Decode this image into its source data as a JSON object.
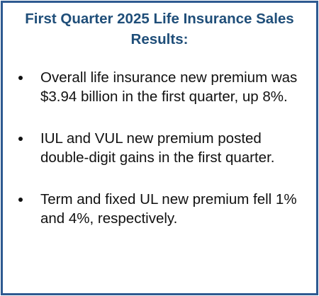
{
  "header": {
    "title": "First Quarter 2025 Life Insurance Sales Results:"
  },
  "bullets": [
    "Overall life insurance new premium was $3.94 billion in the first quarter, up 8%.",
    "IUL and VUL new premium posted double-digit gains in the first quarter.",
    "Term and fixed UL new premium fell 1% and 4%, respectively."
  ]
}
